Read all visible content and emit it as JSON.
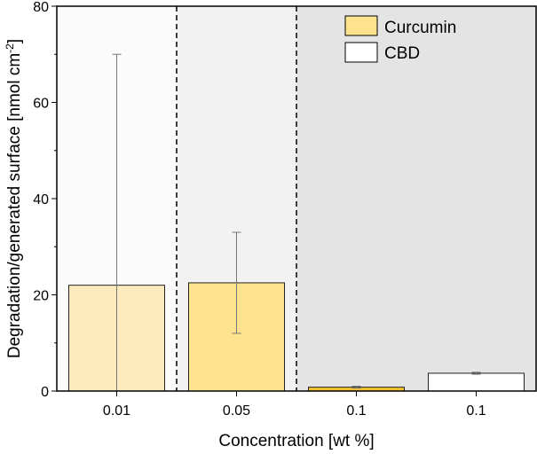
{
  "chart_data": {
    "type": "bar",
    "title": "",
    "xlabel": "Concentration [wt %]",
    "ylabel": "Degradation/generated surface [nmol cm",
    "ylabel_sup": "-2",
    "ylabel_end": "]",
    "ylim": [
      0,
      80
    ],
    "yticks": [
      "0",
      "20",
      "40",
      "60",
      "80"
    ],
    "ytick_values": [
      0,
      20,
      40,
      60,
      80
    ],
    "categories": [
      "0.01",
      "0.05",
      "0.1",
      "0.1"
    ],
    "bars": [
      {
        "category": "0.01",
        "series": "Curcumin",
        "value": 22,
        "err_low": 0,
        "err_high": 70,
        "color": "#fdebbd"
      },
      {
        "category": "0.05",
        "series": "Curcumin",
        "value": 22.5,
        "err_low": 12,
        "err_high": 33,
        "color": "#fde38e"
      },
      {
        "category": "0.1",
        "series": "Curcumin",
        "value": 0.8,
        "err_low": 0.6,
        "err_high": 1.0,
        "color": "#f7c531"
      },
      {
        "category": "0.1",
        "series": "CBD",
        "value": 3.7,
        "err_low": 3.5,
        "err_high": 3.9,
        "color": "#ffffff"
      }
    ],
    "regions": [
      {
        "from": 0,
        "to": 1,
        "color": "#fbfbfb"
      },
      {
        "from": 1,
        "to": 2,
        "color": "#f2f2f2"
      },
      {
        "from": 2,
        "to": 4,
        "color": "#e4e4e4"
      }
    ],
    "legend": {
      "placement": "top-right",
      "entries": [
        {
          "label": "Curcumin",
          "color": "#fde38e"
        },
        {
          "label": "CBD",
          "color": "#ffffff"
        }
      ]
    }
  }
}
